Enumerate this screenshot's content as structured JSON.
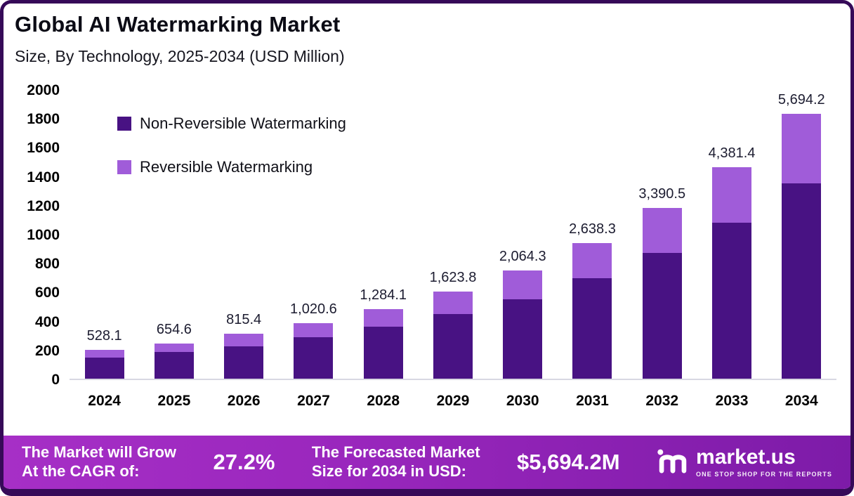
{
  "header": {
    "title": "Global AI Watermarking Market",
    "subtitle": "Size, By Technology, 2025-2034 (USD Million)"
  },
  "chart_data": {
    "type": "bar",
    "stacked": true,
    "title": "Global AI Watermarking Market",
    "subtitle": "Size, By Technology, 2025-2034 (USD Million)",
    "categories": [
      "2024",
      "2025",
      "2026",
      "2027",
      "2028",
      "2029",
      "2030",
      "2031",
      "2032",
      "2033",
      "2034"
    ],
    "totals": [
      528.1,
      654.6,
      815.4,
      1020.6,
      1284.1,
      1623.8,
      2064.3,
      2638.3,
      3390.5,
      4381.4,
      5694.2
    ],
    "total_labels": [
      "528.1",
      "654.6",
      "815.4",
      "1,020.6",
      "1,284.1",
      "1,623.8",
      "2,064.3",
      "2,638.3",
      "3,390.5",
      "4,381.4",
      "5,694.2"
    ],
    "series": [
      {
        "name": "Non-Reversible Watermarking",
        "color": "#481283",
        "display_values": [
          145,
          185,
          225,
          285,
          360,
          445,
          550,
          695,
          870,
          1080,
          1350
        ]
      },
      {
        "name": "Reversible Watermarking",
        "color": "#a05cd9",
        "display_values": [
          55,
          60,
          85,
          100,
          120,
          155,
          200,
          240,
          310,
          380,
          480
        ]
      }
    ],
    "ylim": [
      0,
      2000
    ],
    "ytick_step": 200,
    "ytick_labels": [
      "0",
      "200",
      "400",
      "600",
      "800",
      "1000",
      "1200",
      "1400",
      "1600",
      "1800",
      "2000"
    ],
    "legend_position": "top-left",
    "grid": false
  },
  "footer": {
    "cagr_label_line1": "The Market will Grow",
    "cagr_label_line2": "At the CAGR of:",
    "cagr_value": "27.2%",
    "forecast_label_line1": "The Forecasted Market",
    "forecast_label_line2": "Size for 2034 in USD:",
    "forecast_value": "$5,694.2M",
    "brand": "market.us",
    "brand_tagline": "ONE STOP SHOP FOR THE REPORTS"
  },
  "colors": {
    "non_reversible": "#481283",
    "reversible": "#a05cd9",
    "frame_border": "#360a58",
    "footer_gradient_start": "#a62fc6",
    "footer_gradient_end": "#7d1ba8"
  }
}
